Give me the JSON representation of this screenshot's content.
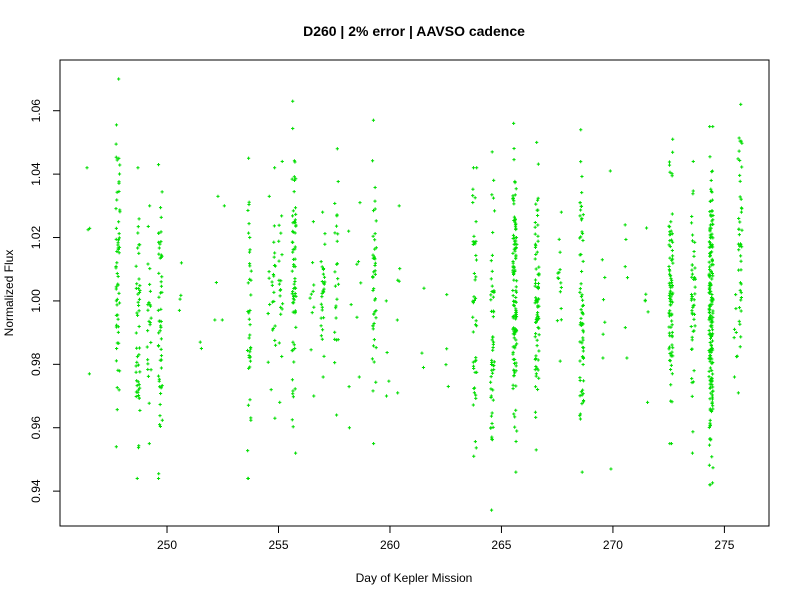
{
  "chart_data": {
    "type": "scatter",
    "title": "D260 | 2% error | AAVSO cadence",
    "xlabel": "Day of Kepler Mission",
    "ylabel": "Normalized Flux",
    "xlim": [
      245.2,
      277.0
    ],
    "ylim": [
      0.929,
      1.076
    ],
    "xticks": [
      250,
      255,
      260,
      265,
      270,
      275
    ],
    "yticks": [
      0.94,
      0.96,
      0.98,
      1.0,
      1.02,
      1.04,
      1.06
    ],
    "xtick_labels": [
      "250",
      "255",
      "260",
      "265",
      "270",
      "275"
    ],
    "ytick_labels": [
      "0.94",
      "0.96",
      "0.98",
      "1.00",
      "1.02",
      "1.04",
      "1.06"
    ],
    "grid": false,
    "marker": "+",
    "marker_color": "#00dd00",
    "series": [
      {
        "x_clusters": [
          {
            "x": 246.5,
            "n": 4,
            "min": 0.977,
            "max": 1.042
          },
          {
            "x": 247.8,
            "n": 60,
            "min": 0.954,
            "max": 1.07
          },
          {
            "x": 248.7,
            "n": 50,
            "min": 0.944,
            "max": 1.042
          },
          {
            "x": 249.2,
            "n": 25,
            "min": 0.955,
            "max": 1.03
          },
          {
            "x": 249.7,
            "n": 55,
            "min": 0.944,
            "max": 1.043
          },
          {
            "x": 250.6,
            "n": 4,
            "min": 0.997,
            "max": 1.012
          },
          {
            "x": 251.5,
            "n": 2,
            "min": 0.985,
            "max": 0.987
          },
          {
            "x": 252.2,
            "n": 3,
            "min": 0.994,
            "max": 1.033
          },
          {
            "x": 252.5,
            "n": 2,
            "min": 0.994,
            "max": 1.03
          },
          {
            "x": 253.7,
            "n": 40,
            "min": 0.944,
            "max": 1.045
          },
          {
            "x": 254.6,
            "n": 8,
            "min": 0.972,
            "max": 1.033
          },
          {
            "x": 254.8,
            "n": 20,
            "min": 0.963,
            "max": 1.042
          },
          {
            "x": 255.1,
            "n": 20,
            "min": 0.968,
            "max": 1.044
          },
          {
            "x": 255.7,
            "n": 70,
            "min": 0.952,
            "max": 1.063
          },
          {
            "x": 256.5,
            "n": 10,
            "min": 0.97,
            "max": 1.025
          },
          {
            "x": 257.0,
            "n": 30,
            "min": 0.976,
            "max": 1.028
          },
          {
            "x": 257.6,
            "n": 25,
            "min": 0.964,
            "max": 1.048
          },
          {
            "x": 258.2,
            "n": 4,
            "min": 0.96,
            "max": 1.022
          },
          {
            "x": 258.6,
            "n": 6,
            "min": 0.976,
            "max": 1.031
          },
          {
            "x": 259.3,
            "n": 45,
            "min": 0.955,
            "max": 1.057
          },
          {
            "x": 259.9,
            "n": 4,
            "min": 0.97,
            "max": 1.0
          },
          {
            "x": 260.4,
            "n": 6,
            "min": 0.971,
            "max": 1.03
          },
          {
            "x": 261.5,
            "n": 3,
            "min": 0.979,
            "max": 1.004
          },
          {
            "x": 262.6,
            "n": 4,
            "min": 0.973,
            "max": 1.002
          },
          {
            "x": 263.8,
            "n": 45,
            "min": 0.951,
            "max": 1.042
          },
          {
            "x": 264.6,
            "n": 55,
            "min": 0.934,
            "max": 1.047
          },
          {
            "x": 265.6,
            "n": 120,
            "min": 0.946,
            "max": 1.056
          },
          {
            "x": 266.6,
            "n": 80,
            "min": 0.953,
            "max": 1.05
          },
          {
            "x": 267.6,
            "n": 15,
            "min": 0.981,
            "max": 1.028
          },
          {
            "x": 268.6,
            "n": 70,
            "min": 0.946,
            "max": 1.054
          },
          {
            "x": 269.6,
            "n": 6,
            "min": 0.982,
            "max": 1.013
          },
          {
            "x": 269.9,
            "n": 2,
            "min": 0.947,
            "max": 1.041
          },
          {
            "x": 270.6,
            "n": 6,
            "min": 0.982,
            "max": 1.024
          },
          {
            "x": 271.5,
            "n": 6,
            "min": 0.968,
            "max": 1.023
          },
          {
            "x": 272.6,
            "n": 90,
            "min": 0.955,
            "max": 1.051
          },
          {
            "x": 273.6,
            "n": 50,
            "min": 0.952,
            "max": 1.044
          },
          {
            "x": 274.4,
            "n": 200,
            "min": 0.942,
            "max": 1.055
          },
          {
            "x": 275.5,
            "n": 8,
            "min": 0.976,
            "max": 1.002
          },
          {
            "x": 275.7,
            "n": 45,
            "min": 0.971,
            "max": 1.062
          }
        ]
      }
    ]
  }
}
